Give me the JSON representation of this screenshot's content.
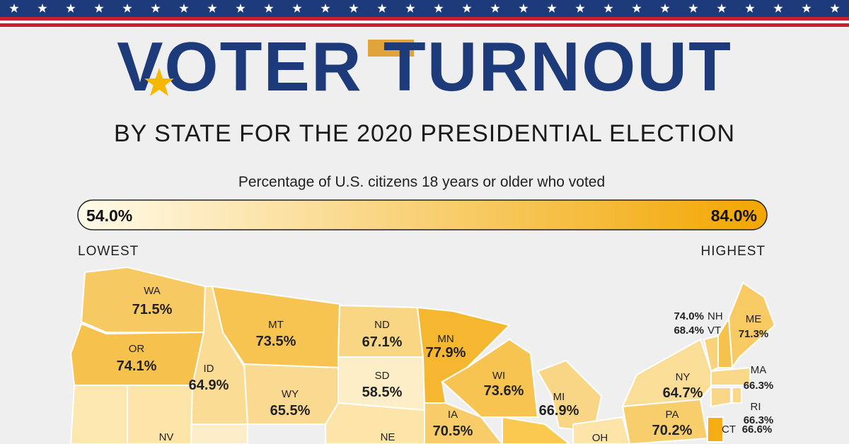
{
  "header": {
    "title": "VOTER TURNOUT",
    "subtitle": "BY STATE FOR THE 2020 PRESIDENTIAL ELECTION"
  },
  "legend": {
    "caption": "Percentage of U.S. citizens 18 years or older who voted",
    "min": {
      "value": 54,
      "label": "54.0%"
    },
    "max": {
      "value": 84,
      "label": "84.0%"
    },
    "low_label": "LOWEST",
    "high_label": "HIGHEST",
    "colors": [
      "#fffbea",
      "#f2a600"
    ]
  },
  "states": [
    {
      "abbr": "WA",
      "value": 71.5,
      "label": "71.5%"
    },
    {
      "abbr": "OR",
      "value": 74.1,
      "label": "74.1%"
    },
    {
      "abbr": "ID",
      "value": 64.9,
      "label": "64.9%"
    },
    {
      "abbr": "MT",
      "value": 73.5,
      "label": "73.5%"
    },
    {
      "abbr": "WY",
      "value": 65.5,
      "label": "65.5%"
    },
    {
      "abbr": "ND",
      "value": 67.1,
      "label": "67.1%"
    },
    {
      "abbr": "SD",
      "value": 58.5,
      "label": "58.5%"
    },
    {
      "abbr": "MN",
      "value": 77.9,
      "label": "77.9%"
    },
    {
      "abbr": "WI",
      "value": 73.6,
      "label": "73.6%"
    },
    {
      "abbr": "IA",
      "value": 70.5,
      "label": "70.5%"
    },
    {
      "abbr": "MI",
      "value": 66.9,
      "label": "66.9%"
    },
    {
      "abbr": "NY",
      "value": 64.7,
      "label": "64.7%"
    },
    {
      "abbr": "PA",
      "value": 70.2,
      "label": "70.2%"
    },
    {
      "abbr": "ME",
      "value": 71.3,
      "label": "71.3%"
    },
    {
      "abbr": "NH",
      "value": 74.0,
      "label": "74.0%"
    },
    {
      "abbr": "VT",
      "value": 68.4,
      "label": "68.4%"
    },
    {
      "abbr": "MA",
      "value": 66.3,
      "label": "66.3%"
    },
    {
      "abbr": "RI",
      "value": 66.3,
      "label": "66.3%"
    },
    {
      "abbr": "CT",
      "value": 66.6,
      "label": "66.6%"
    },
    {
      "abbr": "NV"
    },
    {
      "abbr": "NE"
    },
    {
      "abbr": "OH"
    }
  ]
}
